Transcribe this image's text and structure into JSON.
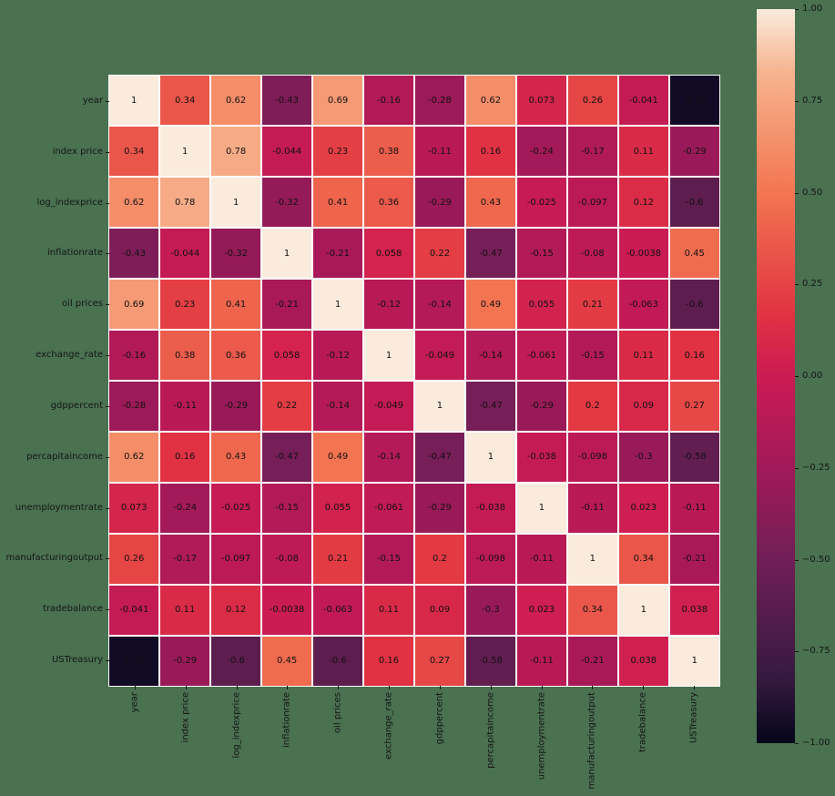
{
  "figure": {
    "background_color": "#4A7150",
    "grid_line_color": "#FFFFFF",
    "annotation_text_color": "#111111",
    "tick_color": "#161616"
  },
  "chart_data": {
    "type": "heatmap",
    "title": "",
    "xlabel": "",
    "ylabel": "",
    "labels": [
      "year",
      "index price",
      "log_indexprice",
      "inflationrate",
      "oil prices",
      "exchange_rate",
      "gdppercent",
      "percapitaincome",
      "unemploymentrate",
      "manufacturingoutput",
      "tradebalance",
      "USTreasury"
    ],
    "matrix": [
      [
        "1",
        "0.34",
        "0.62",
        "-0.43",
        "0.69",
        "-0.16",
        "-0.28",
        "0.62",
        "0.073",
        "0.26",
        "-0.041",
        "-0.95"
      ],
      [
        "0.34",
        "1",
        "0.78",
        "-0.044",
        "0.23",
        "0.38",
        "-0.11",
        "0.16",
        "-0.24",
        "-0.17",
        "0.11",
        "-0.29"
      ],
      [
        "0.62",
        "0.78",
        "1",
        "-0.32",
        "0.41",
        "0.36",
        "-0.29",
        "0.43",
        "-0.025",
        "-0.097",
        "0.12",
        "-0.6"
      ],
      [
        "-0.43",
        "-0.044",
        "-0.32",
        "1",
        "-0.21",
        "0.058",
        "0.22",
        "-0.47",
        "-0.15",
        "-0.08",
        "-0.0038",
        "0.45"
      ],
      [
        "0.69",
        "0.23",
        "0.41",
        "-0.21",
        "1",
        "-0.12",
        "-0.14",
        "0.49",
        "0.055",
        "0.21",
        "-0.063",
        "-0.6"
      ],
      [
        "-0.16",
        "0.38",
        "0.36",
        "0.058",
        "-0.12",
        "1",
        "-0.049",
        "-0.14",
        "-0.061",
        "-0.15",
        "0.11",
        "0.16"
      ],
      [
        "-0.28",
        "-0.11",
        "-0.29",
        "0.22",
        "-0.14",
        "-0.049",
        "1",
        "-0.47",
        "-0.29",
        "0.2",
        "0.09",
        "0.27"
      ],
      [
        "0.62",
        "0.16",
        "0.43",
        "-0.47",
        "0.49",
        "-0.14",
        "-0.47",
        "1",
        "-0.038",
        "-0.098",
        "-0.3",
        "-0.58"
      ],
      [
        "0.073",
        "-0.24",
        "-0.025",
        "-0.15",
        "0.055",
        "-0.061",
        "-0.29",
        "-0.038",
        "1",
        "-0.11",
        "0.023",
        "-0.11"
      ],
      [
        "0.26",
        "-0.17",
        "-0.097",
        "-0.08",
        "0.21",
        "-0.15",
        "0.2",
        "-0.098",
        "-0.11",
        "1",
        "0.34",
        "-0.21"
      ],
      [
        "-0.041",
        "0.11",
        "0.12",
        "-0.0038",
        "-0.063",
        "0.11",
        "0.09",
        "-0.3",
        "0.023",
        "0.34",
        "1",
        "0.038"
      ],
      [
        "-0.95",
        "-0.29",
        "-0.6",
        "0.45",
        "-0.6",
        "0.16",
        "0.27",
        "-0.58",
        "-0.11",
        "-0.21",
        "0.038",
        "1"
      ]
    ],
    "colormap": {
      "name": "rocket",
      "anchors": [
        {
          "value": -1.0,
          "color": "#03051A"
        },
        {
          "value": -0.83,
          "color": "#35193E"
        },
        {
          "value": -0.5,
          "color": "#701F57"
        },
        {
          "value": -0.25,
          "color": "#A21959"
        },
        {
          "value": 0.0,
          "color": "#CB1B54"
        },
        {
          "value": 0.17,
          "color": "#E13342"
        },
        {
          "value": 0.5,
          "color": "#F37651"
        },
        {
          "value": 0.83,
          "color": "#F6B48F"
        },
        {
          "value": 1.0,
          "color": "#FAEBDD"
        }
      ]
    },
    "colorbar": {
      "vmin": -1,
      "vmax": 1,
      "tick_labels": [
        "1.00",
        "0.75",
        "0.50",
        "0.25",
        "0.00",
        "−0.25",
        "−0.50",
        "−0.75",
        "−1.00"
      ],
      "position": "right"
    },
    "legend": "none",
    "grid": "white cell separators"
  }
}
